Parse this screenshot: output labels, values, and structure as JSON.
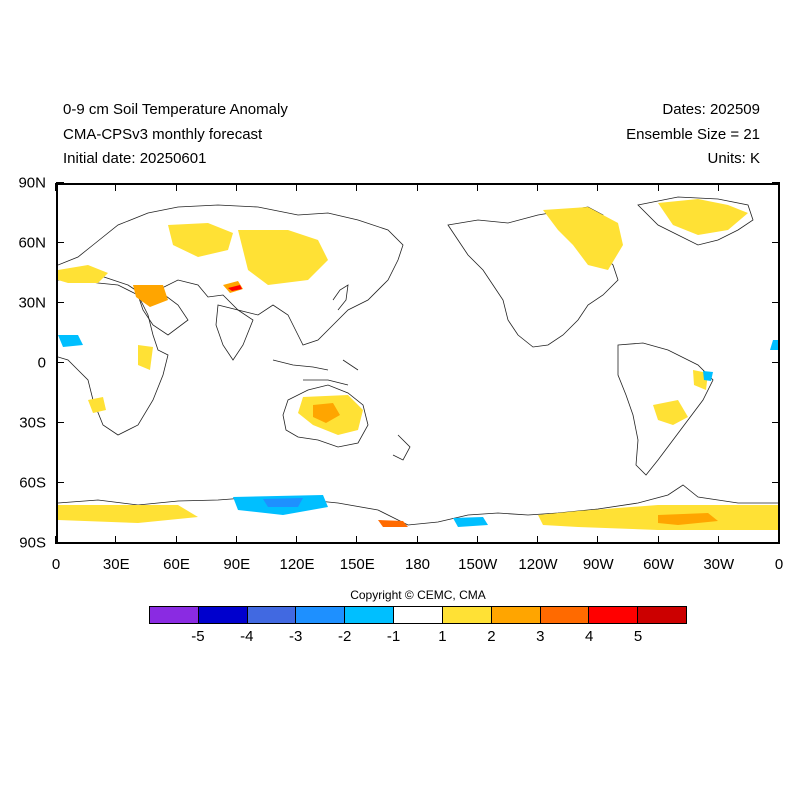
{
  "header": {
    "title": "0-9 cm Soil Temperature Anomaly",
    "model": "CMA-CPSv3 monthly forecast",
    "initial_date": "Initial date: 20250601",
    "dates": "Dates: 202509",
    "ensemble": "Ensemble Size = 21",
    "units": "Units: K"
  },
  "axes": {
    "lat_labels": [
      "90N",
      "60N",
      "30N",
      "0",
      "30S",
      "60S",
      "90S"
    ],
    "lon_labels": [
      "0",
      "30E",
      "60E",
      "90E",
      "120E",
      "150E",
      "180",
      "150W",
      "120W",
      "90W",
      "60W",
      "30W",
      "0"
    ]
  },
  "copyright": "Copyright © CEMC, CMA",
  "colorbar": {
    "colors": [
      "#8a2be2",
      "#0000cd",
      "#4169e1",
      "#1e90ff",
      "#00bfff",
      "#ffffff",
      "#ffe135",
      "#ffa500",
      "#ff6a00",
      "#ff0000",
      "#cc0000"
    ],
    "labels": [
      "-5",
      "-4",
      "-3",
      "-2",
      "-1",
      "1",
      "2",
      "3",
      "4",
      "5"
    ]
  },
  "anomaly_regions": [
    {
      "name": "Eastern Europe / Russia",
      "level": "1 to 2"
    },
    {
      "name": "Central Asia",
      "level": "1 to 2"
    },
    {
      "name": "Mongolia / north China",
      "level": "2 to 4"
    },
    {
      "name": "Iran / Middle East",
      "level": "2 to 3"
    },
    {
      "name": "Australia interior",
      "level": "2 to 3"
    },
    {
      "name": "Greenland",
      "level": "1 to 2"
    },
    {
      "name": "Eastern North America",
      "level": "1 to 2"
    },
    {
      "name": "Brazil",
      "level": "1 to 2"
    },
    {
      "name": "West Africa",
      "level": "-1 to -2"
    },
    {
      "name": "East Antarctica",
      "level": "-1 to -3"
    },
    {
      "name": "West Antarctica",
      "level": "1 to 3"
    }
  ]
}
